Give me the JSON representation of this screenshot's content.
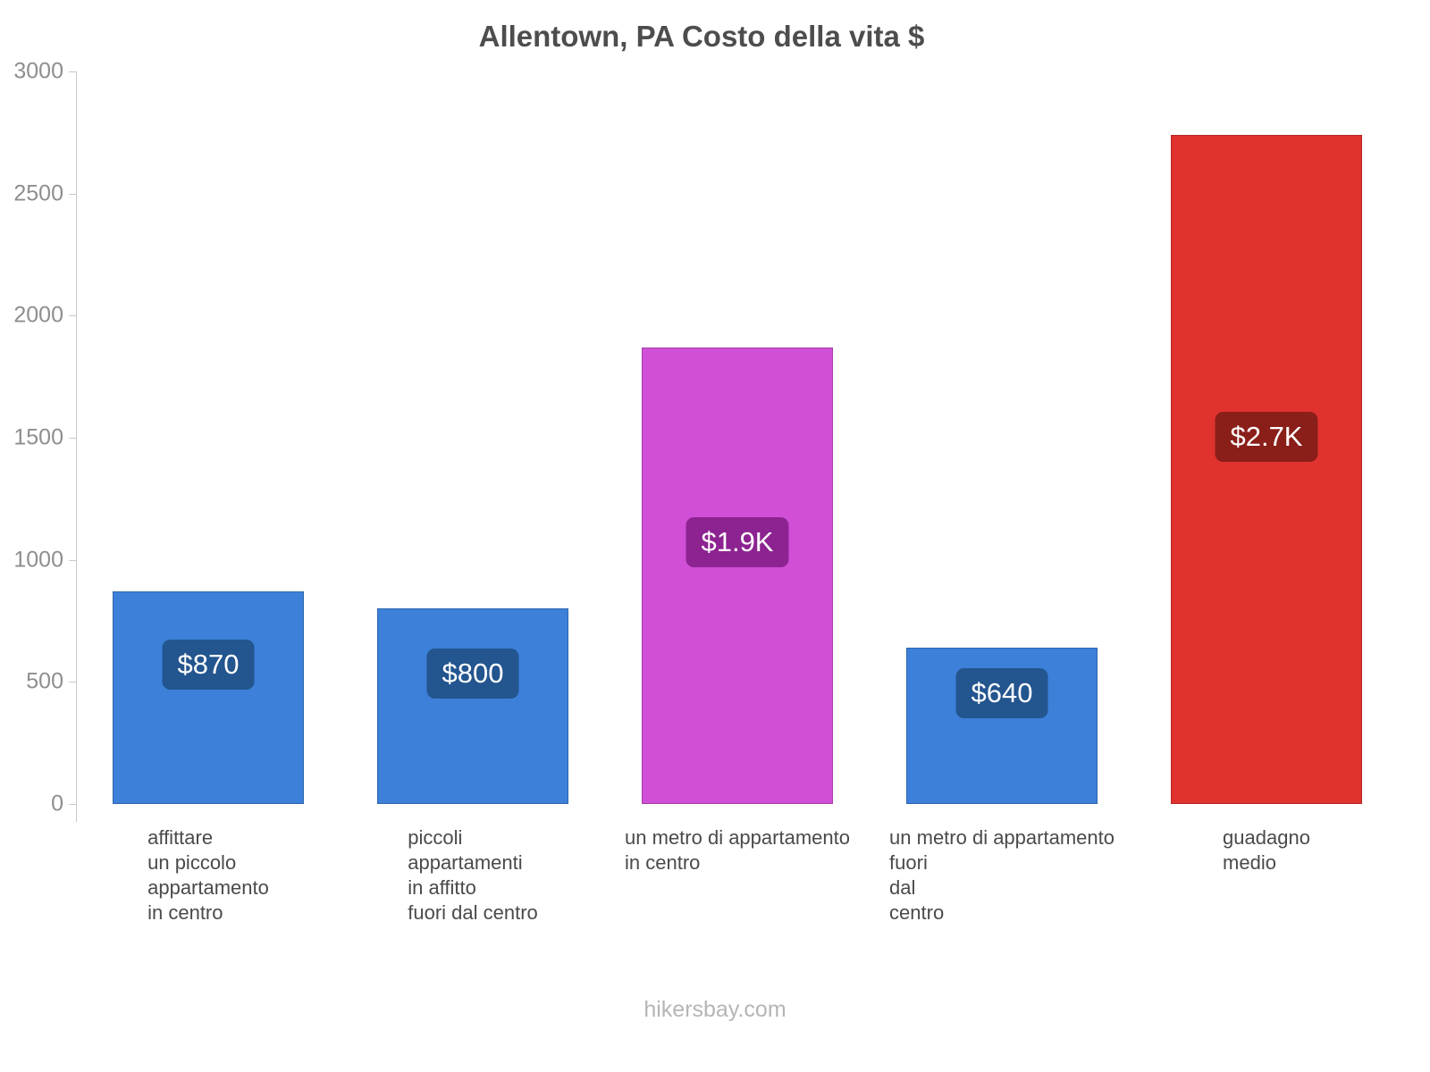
{
  "footer": "hikersbay.com",
  "chart_data": {
    "type": "bar",
    "title": "Allentown, PA Costo della vita $",
    "categories": [
      "affittare un piccolo appartamento in centro",
      "piccoli appartamenti in affitto fuori dal centro",
      "un metro di appartamento in centro",
      "un metro di appartamento fuori dal centro",
      "guadagno medio"
    ],
    "category_lines": [
      [
        "affittare",
        "un piccolo",
        "appartamento",
        "in centro"
      ],
      [
        "piccoli",
        "appartamenti",
        "in affitto",
        "fuori dal centro"
      ],
      [
        "un metro di appartamento",
        "in centro"
      ],
      [
        "un metro di appartamento",
        "fuori",
        "dal",
        "centro"
      ],
      [
        "guadagno",
        "medio"
      ]
    ],
    "values": [
      870,
      800,
      1870,
      640,
      2740
    ],
    "value_labels": [
      "$870",
      "$800",
      "$1.9K",
      "$640",
      "$2.7K"
    ],
    "bar_colors": [
      "#3c80d9",
      "#3c80d9",
      "#d04fd6",
      "#3c80d9",
      "#e0322e"
    ],
    "bar_border_colors": [
      "#2f66ad",
      "#2f66ad",
      "#a73fab",
      "#2f66ad",
      "#b22826"
    ],
    "label_bg_colors": [
      "#23558f",
      "#23558f",
      "#8c2391",
      "#23558f",
      "#8a1f1a"
    ],
    "xlabel": "",
    "ylabel": "",
    "ylim": [
      0,
      3000
    ],
    "yticks": [
      0,
      500,
      1000,
      1500,
      2000,
      2500,
      3000
    ],
    "grid": false,
    "legend": false,
    "axis_color": "#c9c9c9",
    "tick_text_color": "#8e8e8e",
    "category_text_color": "#4a4a4a",
    "title_color": "#4d4d4d"
  }
}
